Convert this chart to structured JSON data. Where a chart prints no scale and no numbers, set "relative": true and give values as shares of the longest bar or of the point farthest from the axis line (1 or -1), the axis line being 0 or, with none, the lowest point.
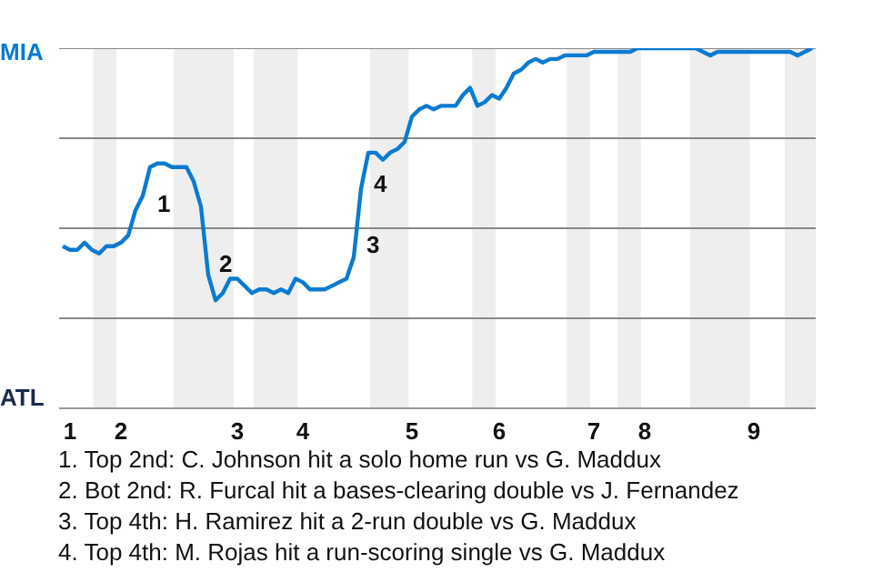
{
  "chart_data": {
    "type": "line",
    "relative": true,
    "categories": [
      null,
      "1",
      null,
      null,
      null,
      null,
      null,
      null,
      "2",
      null,
      null,
      null,
      null,
      null,
      null,
      null,
      null,
      null,
      null,
      null,
      null,
      null,
      null,
      null,
      "3",
      null,
      null,
      null,
      null,
      null,
      null,
      null,
      null,
      "4",
      null,
      null,
      null,
      null,
      null,
      null,
      null,
      null,
      null,
      null,
      null,
      null,
      null,
      null,
      "5",
      null,
      null,
      null,
      null,
      null,
      null,
      null,
      null,
      null,
      null,
      null,
      "6",
      null,
      null,
      null,
      null,
      null,
      null,
      null,
      null,
      null,
      null,
      null,
      null,
      "7",
      null,
      null,
      null,
      null,
      null,
      null,
      "8",
      null,
      null,
      null,
      null,
      null,
      null,
      null,
      null,
      null,
      null,
      null,
      null,
      null,
      null,
      "9",
      null,
      null,
      null,
      null,
      null,
      null,
      null,
      null
    ],
    "series": [
      {
        "color": "#0a7bd0",
        "values": [
          0.45,
          0.44,
          0.44,
          0.46,
          0.44,
          0.43,
          0.45,
          0.45,
          0.46,
          0.48,
          0.55,
          0.59,
          0.67,
          0.68,
          0.68,
          0.67,
          0.67,
          0.67,
          0.63,
          0.56,
          0.37,
          0.3,
          0.32,
          0.36,
          0.36,
          0.34,
          0.32,
          0.33,
          0.33,
          0.32,
          0.33,
          0.32,
          0.36,
          0.35,
          0.33,
          0.33,
          0.33,
          0.34,
          0.35,
          0.36,
          0.42,
          0.61,
          0.71,
          0.71,
          0.69,
          0.71,
          0.72,
          0.74,
          0.81,
          0.83,
          0.84,
          0.83,
          0.84,
          0.84,
          0.84,
          0.87,
          0.89,
          0.84,
          0.85,
          0.87,
          0.86,
          0.89,
          0.93,
          0.94,
          0.96,
          0.97,
          0.96,
          0.97,
          0.97,
          0.98,
          0.98,
          0.98,
          0.98,
          0.99,
          0.99,
          0.99,
          0.99,
          0.99,
          0.99,
          1.0,
          1.0,
          1.0,
          1.0,
          1.0,
          1.0,
          1.0,
          1.0,
          1.0,
          0.99,
          0.98,
          0.99,
          0.99,
          0.99,
          0.99,
          0.99,
          0.99,
          0.99,
          0.99,
          0.99,
          0.99,
          0.99,
          0.98,
          0.99,
          1.0
        ]
      }
    ],
    "grid": "y",
    "marker": "none",
    "line_style": "solid",
    "annotations": [
      "MIA",
      "ATL",
      "1",
      "2",
      "3",
      "4",
      "1. Top 2nd: C. Johnson hit a solo home run vs G. Maddux",
      "2. Bot 2nd: R. Furcal hit a bases-clearing double vs J. Fernandez",
      "3. Top 4th: H. Ramirez hit a 2-run double vs G. Maddux",
      "4. Top 4th: M. Rojas hit a run-scoring single vs G. Maddux"
    ]
  }
}
